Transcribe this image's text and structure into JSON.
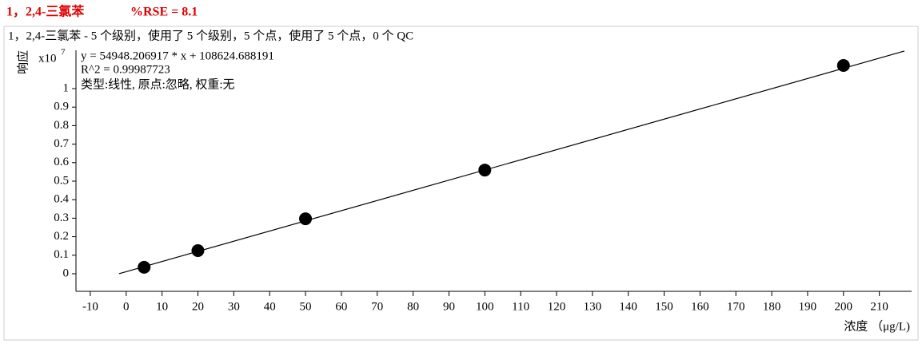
{
  "header": {
    "compound": "1，2,4-三氯苯",
    "rse": "%RSE = 8.1"
  },
  "chart_data": {
    "type": "scatter",
    "subtitle": "1，2,4-三氯苯 - 5 个级别，使用了 5 个级别，5 个点，使用了 5 个点，0 个 QC",
    "annotations": [
      "y = 54948.206917 * x   + 108624.688191",
      "R^2 = 0.99987723",
      "类型:线性, 原点:忽略, 权重:无"
    ],
    "ylabel": "响应",
    "y_scale_base": "x10",
    "y_scale_exponent": "7",
    "xlabel": "浓度 （μg/L)",
    "x": [
      5,
      20,
      50,
      100,
      200
    ],
    "values": [
      0.035,
      0.125,
      0.297,
      0.56,
      1.125
    ],
    "color": "#000000",
    "fit": {
      "x": [
        -2,
        217
      ],
      "values": [
        0.0,
        1.203
      ],
      "color": "#000000"
    },
    "xlim": [
      -14,
      219
    ],
    "ylim": [
      -0.095,
      1.207
    ],
    "xticks": [
      -10,
      0,
      10,
      20,
      30,
      40,
      50,
      60,
      70,
      80,
      90,
      100,
      110,
      120,
      130,
      140,
      150,
      160,
      170,
      180,
      190,
      200,
      210
    ],
    "yticks": [
      0,
      0.1,
      0.2,
      0.3,
      0.4,
      0.5,
      0.6,
      0.7,
      0.8,
      0.9,
      1
    ]
  }
}
